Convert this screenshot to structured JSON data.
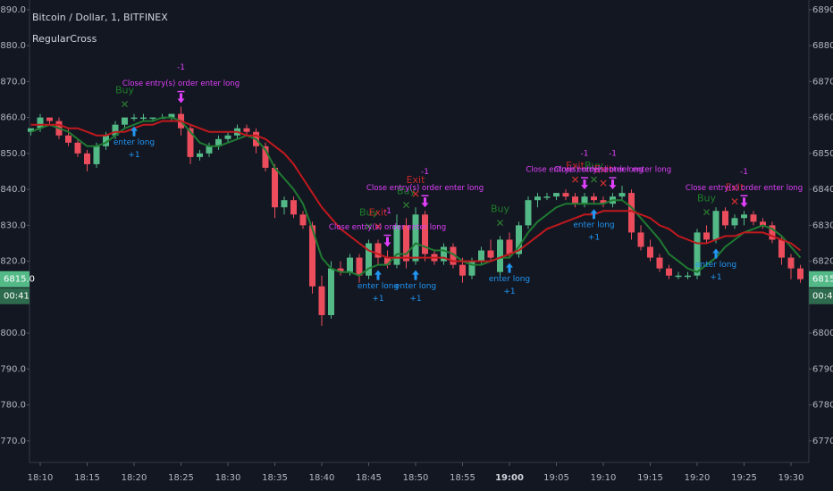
{
  "chart_data": {
    "type": "candlestick",
    "title": "Bitcoin / Dollar, 1, BITFINEX",
    "subtitle": "RegularCross",
    "x": [
      "18:09",
      "18:10",
      "18:11",
      "18:12",
      "18:13",
      "18:14",
      "18:15",
      "18:16",
      "18:17",
      "18:18",
      "18:19",
      "18:20",
      "18:21",
      "18:22",
      "18:23",
      "18:24",
      "18:25",
      "18:26",
      "18:27",
      "18:28",
      "18:29",
      "18:30",
      "18:31",
      "18:32",
      "18:33",
      "18:34",
      "18:35",
      "18:36",
      "18:37",
      "18:38",
      "18:39",
      "18:40",
      "18:41",
      "18:42",
      "18:43",
      "18:44",
      "18:45",
      "18:46",
      "18:47",
      "18:48",
      "18:49",
      "18:50",
      "18:51",
      "18:52",
      "18:53",
      "18:54",
      "18:55",
      "18:56",
      "18:57",
      "18:58",
      "18:59",
      "19:00",
      "19:01",
      "19:02",
      "19:03",
      "19:04",
      "19:05",
      "19:06",
      "19:07",
      "19:08",
      "19:09",
      "19:10",
      "19:11",
      "19:12",
      "19:13",
      "19:14",
      "19:15",
      "19:16",
      "19:17",
      "19:18",
      "19:19",
      "19:20",
      "19:21",
      "19:22",
      "19:23",
      "19:24",
      "19:25",
      "19:26",
      "19:27",
      "19:28",
      "19:29",
      "19:30",
      "19:31"
    ],
    "ohlc": [
      [
        6856,
        6857,
        6855,
        6857
      ],
      [
        6857,
        6861,
        6856,
        6860
      ],
      [
        6860,
        6860,
        6858,
        6859
      ],
      [
        6859,
        6860,
        6854,
        6855
      ],
      [
        6855,
        6857,
        6852,
        6853
      ],
      [
        6853,
        6854,
        6849,
        6850
      ],
      [
        6850,
        6851,
        6845,
        6847
      ],
      [
        6847,
        6853,
        6846,
        6852
      ],
      [
        6852,
        6856,
        6851,
        6855
      ],
      [
        6855,
        6859,
        6854,
        6858
      ],
      [
        6858,
        6860,
        6857,
        6860
      ],
      [
        6860,
        6861,
        6859,
        6860
      ],
      [
        6860,
        6861,
        6859,
        6860
      ],
      [
        6860,
        6860,
        6859,
        6860
      ],
      [
        6860,
        6861,
        6860,
        6860
      ],
      [
        6860,
        6861,
        6859,
        6861
      ],
      [
        6861,
        6863,
        6855,
        6857
      ],
      [
        6857,
        6858,
        6847,
        6849
      ],
      [
        6849,
        6851,
        6848,
        6850
      ],
      [
        6850,
        6853,
        6849,
        6852
      ],
      [
        6852,
        6855,
        6851,
        6854
      ],
      [
        6854,
        6856,
        6853,
        6855
      ],
      [
        6855,
        6858,
        6854,
        6857
      ],
      [
        6857,
        6858,
        6855,
        6856
      ],
      [
        6856,
        6857,
        6850,
        6852
      ],
      [
        6852,
        6853,
        6845,
        6846
      ],
      [
        6846,
        6847,
        6832,
        6835
      ],
      [
        6835,
        6838,
        6833,
        6837
      ],
      [
        6837,
        6838,
        6832,
        6833
      ],
      [
        6833,
        6834,
        6829,
        6830
      ],
      [
        6830,
        6831,
        6811,
        6813
      ],
      [
        6813,
        6816,
        6802,
        6805
      ],
      [
        6805,
        6820,
        6804,
        6818
      ],
      [
        6818,
        6820,
        6816,
        6817
      ],
      [
        6817,
        6822,
        6816,
        6821
      ],
      [
        6821,
        6822,
        6814,
        6816
      ],
      [
        6816,
        6826,
        6815,
        6825
      ],
      [
        6825,
        6826,
        6819,
        6821
      ],
      [
        6821,
        6823,
        6818,
        6819
      ],
      [
        6819,
        6833,
        6818,
        6830
      ],
      [
        6830,
        6832,
        6818,
        6820
      ],
      [
        6820,
        6835,
        6819,
        6833
      ],
      [
        6833,
        6834,
        6820,
        6822
      ],
      [
        6822,
        6823,
        6819,
        6820
      ],
      [
        6820,
        6825,
        6819,
        6824
      ],
      [
        6824,
        6825,
        6818,
        6819
      ],
      [
        6819,
        6821,
        6814,
        6816
      ],
      [
        6816,
        6821,
        6815,
        6820
      ],
      [
        6820,
        6824,
        6819,
        6823
      ],
      [
        6823,
        6826,
        6820,
        6821
      ],
      [
        6817,
        6827,
        6816,
        6826
      ],
      [
        6826,
        6828,
        6821,
        6822
      ],
      [
        6822,
        6831,
        6821,
        6830
      ],
      [
        6830,
        6838,
        6829,
        6837
      ],
      [
        6837,
        6839,
        6835,
        6838
      ],
      [
        6838,
        6839,
        6837,
        6838
      ],
      [
        6838,
        6839,
        6837,
        6839
      ],
      [
        6839,
        6840,
        6837,
        6838
      ],
      [
        6838,
        6839,
        6835,
        6836
      ],
      [
        6836,
        6839,
        6835,
        6838
      ],
      [
        6838,
        6839,
        6836,
        6837
      ],
      [
        6837,
        6838,
        6835,
        6836
      ],
      [
        6836,
        6839,
        6835,
        6838
      ],
      [
        6838,
        6841,
        6837,
        6839
      ],
      [
        6839,
        6840,
        6826,
        6828
      ],
      [
        6828,
        6830,
        6823,
        6824
      ],
      [
        6824,
        6826,
        6820,
        6821
      ],
      [
        6821,
        6822,
        6817,
        6818
      ],
      [
        6818,
        6819,
        6815,
        6816
      ],
      [
        6816,
        6817,
        6815,
        6816
      ],
      [
        6816,
        6817,
        6815,
        6816
      ],
      [
        6816,
        6829,
        6815,
        6828
      ],
      [
        6828,
        6830,
        6825,
        6826
      ],
      [
        6826,
        6835,
        6825,
        6834
      ],
      [
        6834,
        6835,
        6829,
        6830
      ],
      [
        6830,
        6833,
        6829,
        6832
      ],
      [
        6832,
        6834,
        6830,
        6833
      ],
      [
        6833,
        6834,
        6830,
        6831
      ],
      [
        6831,
        6832,
        6829,
        6830
      ],
      [
        6830,
        6831,
        6825,
        6826
      ],
      [
        6826,
        6827,
        6819,
        6821
      ],
      [
        6821,
        6822,
        6815,
        6818
      ],
      [
        6818,
        6819,
        6814,
        6815
      ]
    ],
    "up_color": "#53b987",
    "down_color": "#eb4d5c",
    "series": [
      {
        "color": "#1f7a31",
        "values": [
          6856,
          6857,
          6858,
          6857,
          6856,
          6854,
          6852,
          6852,
          6853,
          6855,
          6857,
          6858,
          6859,
          6859,
          6860,
          6860,
          6859,
          6856,
          6853,
          6852,
          6852,
          6853,
          6854,
          6855,
          6854,
          6851,
          6846,
          6843,
          6840,
          6836,
          6829,
          6821,
          6818,
          6817,
          6817,
          6816,
          6818,
          6819,
          6819,
          6822,
          6822,
          6825,
          6824,
          6823,
          6823,
          6822,
          6820,
          6819,
          6819,
          6820,
          6821,
          6821,
          6824,
          6828,
          6831,
          6833,
          6835,
          6836,
          6836,
          6836,
          6836,
          6836,
          6837,
          6837,
          6835,
          6832,
          6829,
          6826,
          6822,
          6820,
          6818,
          6817,
          6819,
          6821,
          6824,
          6826,
          6828,
          6829,
          6830,
          6829,
          6827,
          6824,
          6821
        ]
      },
      {
        "color": "#c0191d",
        "values": [
          6858,
          6858,
          6858,
          6858,
          6857,
          6857,
          6856,
          6855,
          6855,
          6856,
          6856,
          6857,
          6858,
          6858,
          6859,
          6859,
          6859,
          6858,
          6857,
          6856,
          6856,
          6856,
          6856,
          6855,
          6855,
          6854,
          6852,
          6850,
          6847,
          6843,
          6839,
          6835,
          6832,
          6829,
          6827,
          6825,
          6823,
          6822,
          6821,
          6821,
          6821,
          6821,
          6821,
          6821,
          6821,
          6820,
          6820,
          6820,
          6820,
          6820,
          6821,
          6822,
          6823,
          6825,
          6827,
          6829,
          6830,
          6831,
          6832,
          6833,
          6833,
          6834,
          6834,
          6834,
          6834,
          6833,
          6832,
          6830,
          6829,
          6827,
          6826,
          6825,
          6825,
          6826,
          6827,
          6827,
          6828,
          6828,
          6828,
          6827,
          6826,
          6825,
          6823
        ]
      }
    ],
    "ylim": [
      6764,
      6892.7
    ],
    "yticks": [
      {
        "value": 6770,
        "label": "6770.0"
      },
      {
        "value": 6780,
        "label": "6780.0"
      },
      {
        "value": 6790,
        "label": "6790.0"
      },
      {
        "value": 6800,
        "label": "6800.0"
      },
      {
        "value": 6810,
        "label": "6810.0"
      },
      {
        "value": 6820,
        "label": "6820.0"
      },
      {
        "value": 6830,
        "label": "6830.0"
      },
      {
        "value": 6840,
        "label": "6840.0"
      },
      {
        "value": 6850,
        "label": "6850.0"
      },
      {
        "value": 6860,
        "label": "6860.0"
      },
      {
        "value": 6870,
        "label": "6870.0"
      },
      {
        "value": 6880,
        "label": "6880.0"
      },
      {
        "value": 6890,
        "label": "6890.0"
      }
    ],
    "xticks": [
      "18:10",
      "18:15",
      "18:20",
      "18:25",
      "18:30",
      "18:35",
      "18:40",
      "18:45",
      "18:50",
      "18:55",
      "19:00",
      "19:05",
      "19:10",
      "19:15",
      "19:20",
      "19:25",
      "19:30"
    ],
    "xtick_bold": "19:00",
    "last_price": {
      "value": 6815,
      "label": "6815.0"
    },
    "countdown": "00:41",
    "buys": [
      {
        "x": "18:19",
        "label": "Buy"
      },
      {
        "x": "18:45",
        "label": "Buy"
      },
      {
        "x": "18:49",
        "label": "Buy"
      },
      {
        "x": "18:59",
        "label": "Buy"
      },
      {
        "x": "19:09",
        "label": "Buy"
      },
      {
        "x": "19:21",
        "label": "Buy"
      }
    ],
    "exits": [
      {
        "x": "18:46",
        "label": "Exit"
      },
      {
        "x": "18:50",
        "label": "Exit"
      },
      {
        "x": "19:07",
        "label": "Exit"
      },
      {
        "x": "19:10",
        "label": "Exit"
      },
      {
        "x": "19:24",
        "label": "Exit"
      }
    ],
    "entries": [
      {
        "x": "18:20",
        "label": "enter long",
        "qty": "+1"
      },
      {
        "x": "18:46",
        "label": "enter long",
        "qty": "+1"
      },
      {
        "x": "18:50",
        "label": "enter long",
        "qty": "+1"
      },
      {
        "x": "19:00",
        "label": "enter long",
        "qty": "+1"
      },
      {
        "x": "19:09",
        "label": "enter long",
        "qty": "+1"
      },
      {
        "x": "19:22",
        "label": "enter long",
        "qty": "+1"
      }
    ],
    "closes": [
      {
        "x": "18:25",
        "label": "Close entry(s) order enter long",
        "qty": "-1"
      },
      {
        "x": "18:47",
        "label": "Close entry(s) order enter long",
        "qty": "-1"
      },
      {
        "x": "18:51",
        "label": "Close entry(s) order enter long",
        "qty": "-1"
      },
      {
        "x": "19:08",
        "label": "Close entry(s) order enter long",
        "qty": "-1"
      },
      {
        "x": "19:11",
        "label": "Close entry(s) order enter long",
        "qty": "-1"
      },
      {
        "x": "19:25",
        "label": "Close entry(s) order enter long",
        "qty": "-1"
      }
    ]
  }
}
